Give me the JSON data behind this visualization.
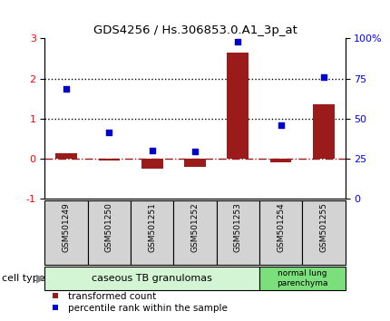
{
  "title": "GDS4256 / Hs.306853.0.A1_3p_at",
  "samples": [
    "GSM501249",
    "GSM501250",
    "GSM501251",
    "GSM501252",
    "GSM501253",
    "GSM501254",
    "GSM501255"
  ],
  "transformed_count": [
    0.15,
    -0.05,
    -0.25,
    -0.2,
    2.65,
    -0.08,
    1.35
  ],
  "percentile_rank_left": [
    1.75,
    0.65,
    0.2,
    0.18,
    2.92,
    0.85,
    2.05
  ],
  "ylim_left": [
    -1,
    3
  ],
  "ylim_right": [
    0,
    100
  ],
  "yticks_left": [
    -1,
    0,
    1,
    2,
    3
  ],
  "yticks_right": [
    0,
    25,
    50,
    75,
    100
  ],
  "ytick_labels_right": [
    "0",
    "25",
    "50",
    "75",
    "100%"
  ],
  "bar_color": "#9B1B1B",
  "square_color": "#0000CC",
  "hline_color": "#9B1B1B",
  "dotted_line_color": "black",
  "group1_label": "caseous TB granulomas",
  "group1_samples": [
    0,
    1,
    2,
    3,
    4
  ],
  "group2_label": "normal lung\nparenchyma",
  "group2_samples": [
    5,
    6
  ],
  "group1_color": "#d4f5d4",
  "group2_color": "#7be07b",
  "cell_type_label": "cell type",
  "legend_bar": "transformed count",
  "legend_square": "percentile rank within the sample",
  "bar_width": 0.5
}
